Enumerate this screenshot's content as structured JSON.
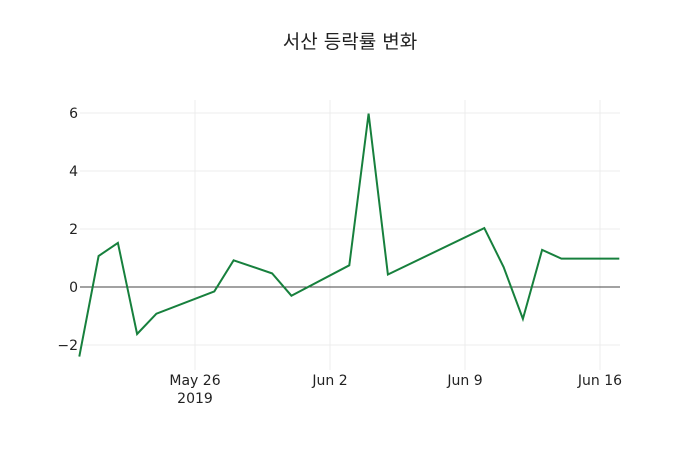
{
  "chart_data": {
    "type": "line",
    "title": "서산 등락률 변화",
    "xlabel": "",
    "ylabel": "",
    "x_tick_labels": [
      "May 26\n2019",
      "Jun 2",
      "Jun 9",
      "Jun 16"
    ],
    "y_tick_labels": [
      "−2",
      "0",
      "2",
      "4",
      "6"
    ],
    "ylim": [
      -2.4,
      6.4
    ],
    "grid": true,
    "line_color": "#17803d",
    "x": [
      "2019-05-20",
      "2019-05-21",
      "2019-05-22",
      "2019-05-23",
      "2019-05-24",
      "2019-05-27",
      "2019-05-28",
      "2019-05-30",
      "2019-05-31",
      "2019-06-03",
      "2019-06-04",
      "2019-06-05",
      "2019-06-10",
      "2019-06-11",
      "2019-06-12",
      "2019-06-13",
      "2019-06-14",
      "2019-06-17"
    ],
    "series": [
      {
        "name": "등락률",
        "values": [
          -2.4,
          1.07,
          1.52,
          -1.62,
          -0.92,
          -0.15,
          0.92,
          0.47,
          -0.3,
          0.75,
          5.98,
          0.43,
          2.03,
          0.69,
          -1.1,
          1.28,
          0.98,
          0.98
        ]
      }
    ]
  },
  "title": "서산 등락률 변화",
  "x_ticks": {
    "t0": "May 26",
    "t0_sub": "2019",
    "t1": "Jun 2",
    "t2": "Jun 9",
    "t3": "Jun 16"
  },
  "y_ticks": {
    "m2": "−2",
    "z": "0",
    "p2": "2",
    "p4": "4",
    "p6": "6"
  }
}
